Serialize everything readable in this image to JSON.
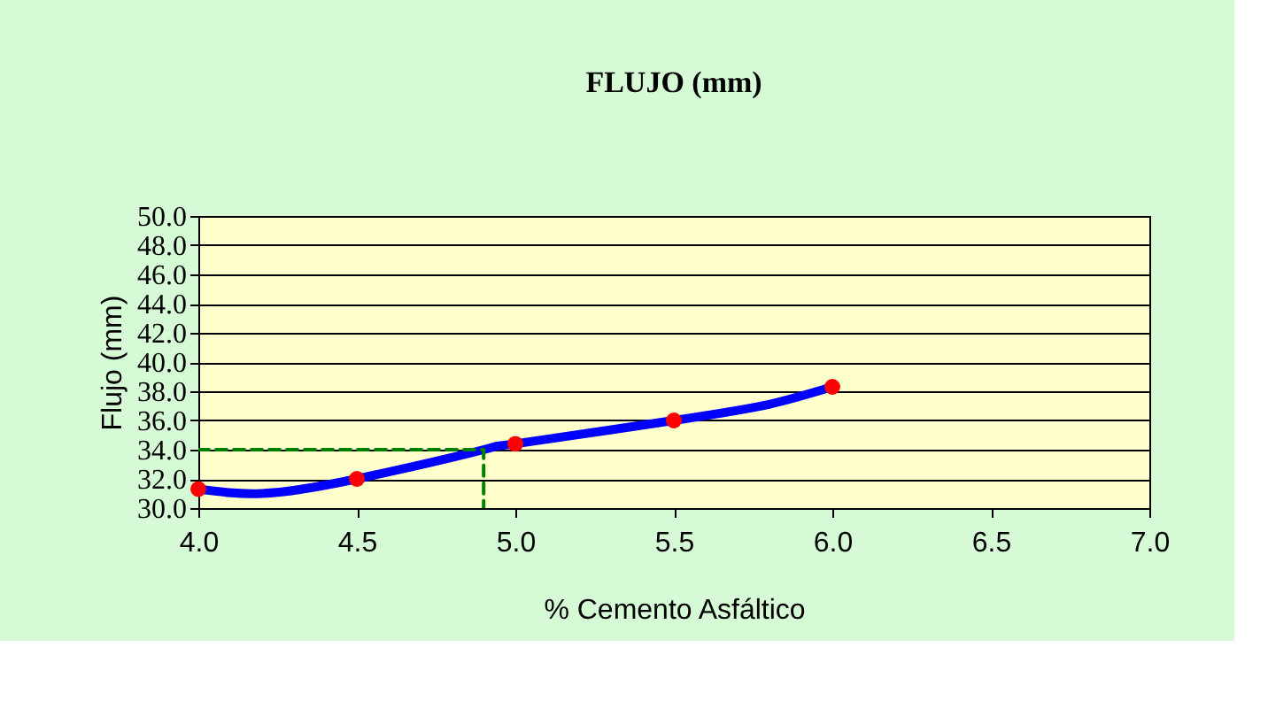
{
  "chart_data": {
    "type": "line",
    "title": "FLUJO (mm)",
    "xlabel": "% Cemento Asfáltico",
    "ylabel": "Flujo (mm)",
    "xlim": [
      4.0,
      7.0
    ],
    "ylim": [
      30.0,
      50.0
    ],
    "xticks": [
      {
        "value": 4,
        "label": "4.0"
      },
      {
        "value": 4.5,
        "label": "4.5"
      },
      {
        "value": 5,
        "label": "5.0"
      },
      {
        "value": 5.5,
        "label": "5.5"
      },
      {
        "value": 6,
        "label": "6.0"
      },
      {
        "value": 6.5,
        "label": "6.5"
      },
      {
        "value": 7,
        "label": "7.0"
      }
    ],
    "yticks": [
      {
        "value": 30,
        "label": "30.0"
      },
      {
        "value": 32,
        "label": "32.0"
      },
      {
        "value": 34,
        "label": "34.0"
      },
      {
        "value": 36,
        "label": "36.0"
      },
      {
        "value": 38,
        "label": "38.0"
      },
      {
        "value": 40,
        "label": "40.0"
      },
      {
        "value": 42,
        "label": "42.0"
      },
      {
        "value": 44,
        "label": "44.0"
      },
      {
        "value": 46,
        "label": "46.0"
      },
      {
        "value": 48,
        "label": "48.0"
      },
      {
        "value": 50,
        "label": "50.0"
      }
    ],
    "grid": "y",
    "series": [
      {
        "color": "#0000ff",
        "x": [
          4.0,
          4.2,
          4.5,
          4.9,
          5.0,
          5.5,
          5.8,
          6.0
        ],
        "values": [
          31.3,
          31.0,
          32.0,
          34.0,
          34.4,
          36.0,
          37.1,
          38.3
        ],
        "marker": "none",
        "line_style": "solid"
      },
      {
        "type": "scatter",
        "color": "#ff0000",
        "x": [
          4.0,
          4.5,
          5.0,
          5.5,
          6.0
        ],
        "values": [
          31.3,
          32.0,
          34.4,
          36.0,
          38.3
        ],
        "marker": "circle"
      },
      {
        "color": "#008000",
        "x": [
          4.0,
          4.9,
          4.9
        ],
        "values": [
          34.0,
          34.0,
          30.0
        ],
        "marker": "none",
        "line_style": "dashed"
      }
    ]
  }
}
